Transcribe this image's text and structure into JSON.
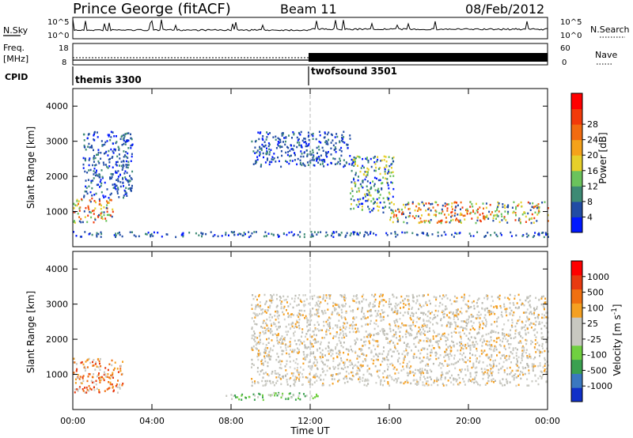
{
  "header": {
    "station": "Prince George (fitACF)",
    "beam": "Beam 11",
    "date": "08/Feb/2012"
  },
  "panels": {
    "nsky": {
      "label": "N.Sky",
      "ticks": [
        "10^5",
        "10^0"
      ]
    },
    "nsearch": {
      "label": "N.Search",
      "ticks": [
        "10^5",
        "10^0"
      ]
    },
    "freq": {
      "label_line1": "Freq.",
      "label_line2": "[MHz]",
      "ticks": [
        "18",
        "8"
      ]
    },
    "nave": {
      "label": "Nave",
      "ticks": [
        "60",
        "0"
      ]
    },
    "cpid": {
      "label": "CPID",
      "modes": [
        {
          "name": "themis 3300",
          "start_hour": 0
        },
        {
          "name": "twofsound 3501",
          "start_hour": 12
        }
      ]
    }
  },
  "chart_data": [
    {
      "type": "heatmap",
      "title": "",
      "xlabel": "",
      "ylabel": "Slant Range [km]",
      "xlim": [
        0,
        24
      ],
      "ylim": [
        0,
        4500
      ],
      "yticks": [
        "1000",
        "2000",
        "3000",
        "4000"
      ],
      "colorbar": {
        "label": "Power [dB]",
        "ticks": [
          "4",
          "8",
          "12",
          "16",
          "20",
          "24",
          "28"
        ],
        "colors": [
          "#0018ff",
          "#214ca5",
          "#3d8a74",
          "#6bc35c",
          "#e6cf2a",
          "#f5a21a",
          "#f26b10",
          "#f23a0a",
          "#ff0000"
        ]
      },
      "echo_bands": [
        {
          "start_hour": 0.0,
          "end_hour": 2.0,
          "range_km": [
            700,
            1400
          ],
          "level": "strong"
        },
        {
          "start_hour": 0.5,
          "end_hour": 3.0,
          "range_km": [
            1400,
            3300
          ],
          "level": "weak"
        },
        {
          "start_hour": 9.0,
          "end_hour": 14.0,
          "range_km": [
            2300,
            3300
          ],
          "level": "weak"
        },
        {
          "start_hour": 14.0,
          "end_hour": 16.2,
          "range_km": [
            1000,
            2600
          ],
          "level": "moderate"
        },
        {
          "start_hour": 16.0,
          "end_hour": 24.0,
          "range_km": [
            700,
            1300
          ],
          "level": "strong"
        },
        {
          "start_hour": 0.0,
          "end_hour": 24.0,
          "range_km": [
            300,
            450
          ],
          "level": "weak"
        }
      ]
    },
    {
      "type": "heatmap",
      "title": "",
      "xlabel": "Time UT",
      "ylabel": "Slant Range [km]",
      "xlim": [
        0,
        24
      ],
      "ylim": [
        0,
        4500
      ],
      "xticks": [
        "00:00",
        "04:00",
        "08:00",
        "12:00",
        "16:00",
        "20:00",
        "00:00"
      ],
      "yticks": [
        "1000",
        "2000",
        "3000",
        "4000"
      ],
      "colorbar": {
        "label": "Velocity [m s^-1]",
        "ticks": [
          "1000",
          "500",
          "100",
          "25",
          "-25",
          "-100",
          "-500",
          "-1000"
        ],
        "colors": [
          "#1030c8",
          "#3a78c0",
          "#3aa050",
          "#70d040",
          "#c8c8c0",
          "#c8c8c0",
          "#f5a021",
          "#f07010",
          "#e83a10",
          "#ff0000"
        ]
      },
      "echo_bands": [
        {
          "start_hour": 0.0,
          "end_hour": 2.5,
          "range_km": [
            500,
            1500
          ],
          "level": "orange"
        },
        {
          "start_hour": 9.0,
          "end_hour": 24.0,
          "range_km": [
            700,
            3300
          ],
          "level": "ground-scatter-gray"
        },
        {
          "start_hour": 7.5,
          "end_hour": 12.5,
          "range_km": [
            300,
            500
          ],
          "level": "green"
        }
      ]
    }
  ],
  "axis_title": "Time UT"
}
